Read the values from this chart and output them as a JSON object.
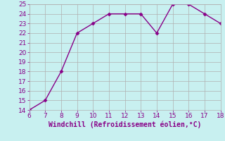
{
  "x": [
    6,
    7,
    8,
    9,
    10,
    11,
    12,
    13,
    14,
    15,
    16,
    17,
    18
  ],
  "y": [
    14,
    15,
    18,
    22,
    23,
    24,
    24,
    24,
    22,
    25,
    25,
    24,
    23
  ],
  "line_color": "#880088",
  "marker": "D",
  "marker_size": 2.5,
  "xlabel": "Windchill (Refroidissement éolien,°C)",
  "xlim": [
    6,
    18
  ],
  "ylim": [
    14,
    25
  ],
  "xticks": [
    6,
    7,
    8,
    9,
    10,
    11,
    12,
    13,
    14,
    15,
    16,
    17,
    18
  ],
  "yticks": [
    14,
    15,
    16,
    17,
    18,
    19,
    20,
    21,
    22,
    23,
    24,
    25
  ],
  "background_color": "#c8f0f0",
  "grid_color": "#b0b0b0",
  "tick_color": "#880088",
  "label_color": "#880088",
  "label_fontsize": 7,
  "tick_fontsize": 6.5,
  "linewidth": 1.0
}
